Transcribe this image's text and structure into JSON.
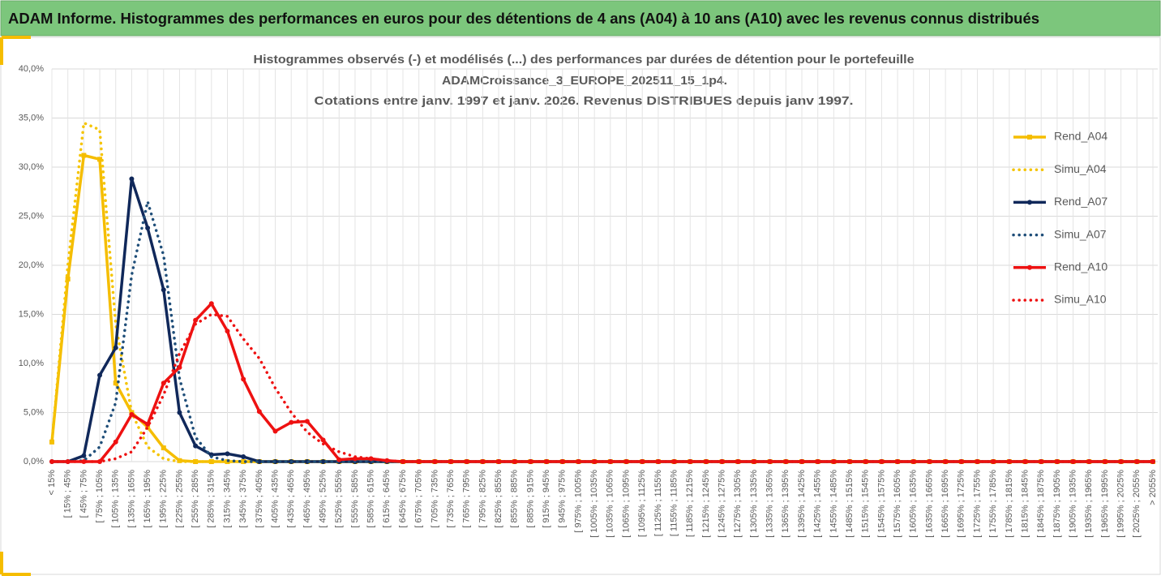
{
  "header": {
    "title": "ADAM Informe. Histogrammes des performances en euros pour des détentions de 4 ans (A04) à 10 ans (A10) avec les revenus connus distribués"
  },
  "chart_data": {
    "type": "line",
    "title_lines": [
      "Histogrammes observés (-) et modélisés (...) des performances par durées de détention pour le portefeuille",
      "ADAMCroissance_3_EUROPE_202511_15_1p4.",
      "Cotations entre janv. 1997 et janv. 2026. Revenus DISTRIBUES depuis janv 1997."
    ],
    "categories": [
      "< 15%",
      "[ 15% ; 45%",
      "[ 45% ; 75%",
      "[ 75% ; 105%",
      "[ 105% ; 135%",
      "[ 135% ; 165%",
      "[ 165% ; 195%",
      "[ 195% ; 225%",
      "[ 225% ; 255%",
      "[ 255% ; 285%",
      "[ 285% ; 315%",
      "[ 315% ; 345%",
      "[ 345% ; 375%",
      "[ 375% ; 405%",
      "[ 405% ; 435%",
      "[ 435% ; 465%",
      "[ 465% ; 495%",
      "[ 495% ; 525%",
      "[ 525% ; 555%",
      "[ 555% ; 585%",
      "[ 585% ; 615%",
      "[ 615% ; 645%",
      "[ 645% ; 675%",
      "[ 675% ; 705%",
      "[ 705% ; 735%",
      "[ 735% ; 765%",
      "[ 765% ; 795%",
      "[ 795% ; 825%",
      "[ 825% ; 855%",
      "[ 855% ; 885%",
      "[ 885% ; 915%",
      "[ 915% ; 945%",
      "[ 945% ; 975%",
      "[ 975% ; 1005%",
      "[ 1005% ; 1035%",
      "[ 1035% ; 1065%",
      "[ 1065% ; 1095%",
      "[ 1095% ; 1125%",
      "[ 1125% ; 1155%",
      "[ 1155% ; 1185%",
      "[ 1185% ; 1215%",
      "[ 1215% ; 1245%",
      "[ 1245% ; 1275%",
      "[ 1275% ; 1305%",
      "[ 1305% ; 1335%",
      "[ 1335% ; 1365%",
      "[ 1365% ; 1395%",
      "[ 1395% ; 1425%",
      "[ 1425% ; 1455%",
      "[ 1455% ; 1485%",
      "[ 1485% ; 1515%",
      "[ 1515% ; 1545%",
      "[ 1545% ; 1575%",
      "[ 1575% ; 1605%",
      "[ 1605% ; 1635%",
      "[ 1635% ; 1665%",
      "[ 1665% ; 1695%",
      "[ 1695% ; 1725%",
      "[ 1725% ; 1755%",
      "[ 1755% ; 1785%",
      "[ 1785% ; 1815%",
      "[ 1815% ; 1845%",
      "[ 1845% ; 1875%",
      "[ 1875% ; 1905%",
      "[ 1905% ; 1935%",
      "[ 1935% ; 1965%",
      "[ 1965% ; 1995%",
      "[ 1995% ; 2025%",
      "[ 2025% ; 2055%",
      "> 2055%"
    ],
    "series": [
      {
        "name": "Rend_A04",
        "color": "#f5bd00",
        "line_style": "solid",
        "marker": "square",
        "values": [
          2.0,
          18.6,
          31.2,
          30.8,
          8.0,
          5.0,
          3.5,
          1.4,
          0.1,
          0,
          0,
          0,
          0,
          0,
          0,
          0,
          0,
          0,
          0,
          0,
          0,
          0,
          0,
          0,
          0,
          0,
          0,
          0,
          0,
          0,
          0,
          0,
          0,
          0,
          0,
          0,
          0,
          0,
          0,
          0,
          0,
          0,
          0,
          0,
          0,
          0,
          0,
          0,
          0,
          0,
          0,
          0,
          0,
          0,
          0,
          0,
          0,
          0,
          0,
          0,
          0,
          0,
          0,
          0,
          0,
          0,
          0,
          0,
          0,
          0
        ]
      },
      {
        "name": "Simu_A04",
        "color": "#f5c400",
        "line_style": "dotted",
        "marker": "none",
        "values": [
          2.0,
          20.0,
          34.5,
          33.8,
          14.0,
          5.0,
          1.5,
          0.3,
          0,
          0,
          0,
          0,
          0,
          0,
          0,
          0,
          0,
          0,
          0,
          0,
          0,
          0,
          0,
          0,
          0,
          0,
          0,
          0,
          0,
          0,
          0,
          0,
          0,
          0,
          0,
          0,
          0,
          0,
          0,
          0,
          0,
          0,
          0,
          0,
          0,
          0,
          0,
          0,
          0,
          0,
          0,
          0,
          0,
          0,
          0,
          0,
          0,
          0,
          0,
          0,
          0,
          0,
          0,
          0,
          0,
          0,
          0,
          0,
          0,
          0
        ]
      },
      {
        "name": "Rend_A07",
        "color": "#10285a",
        "line_style": "solid",
        "marker": "circle",
        "values": [
          0,
          0,
          0.6,
          8.8,
          11.6,
          28.8,
          23.8,
          17.5,
          5.0,
          1.6,
          0.7,
          0.8,
          0.5,
          0,
          0,
          0,
          0,
          0,
          0,
          0,
          0,
          0,
          0,
          0,
          0,
          0,
          0,
          0,
          0,
          0,
          0,
          0,
          0,
          0,
          0,
          0,
          0,
          0,
          0,
          0,
          0,
          0,
          0,
          0,
          0,
          0,
          0,
          0,
          0,
          0,
          0,
          0,
          0,
          0,
          0,
          0,
          0,
          0,
          0,
          0,
          0,
          0,
          0,
          0,
          0,
          0,
          0,
          0,
          0,
          0
        ]
      },
      {
        "name": "Simu_A07",
        "color": "#1f4e79",
        "line_style": "dotted",
        "marker": "none",
        "values": [
          0,
          0,
          0.1,
          1.5,
          6.0,
          19.0,
          26.5,
          21.0,
          8.5,
          2.5,
          0.5,
          0.1,
          0,
          0,
          0,
          0,
          0,
          0,
          0,
          0,
          0,
          0,
          0,
          0,
          0,
          0,
          0,
          0,
          0,
          0,
          0,
          0,
          0,
          0,
          0,
          0,
          0,
          0,
          0,
          0,
          0,
          0,
          0,
          0,
          0,
          0,
          0,
          0,
          0,
          0,
          0,
          0,
          0,
          0,
          0,
          0,
          0,
          0,
          0,
          0,
          0,
          0,
          0,
          0,
          0,
          0,
          0,
          0,
          0,
          0
        ]
      },
      {
        "name": "Rend_A10",
        "color": "#ee1111",
        "line_style": "solid",
        "marker": "circle",
        "values": [
          0,
          0,
          0,
          0,
          2.0,
          4.8,
          3.8,
          8.0,
          9.6,
          14.4,
          16.1,
          13.3,
          8.4,
          5.1,
          3.1,
          4.0,
          4.1,
          2.2,
          0.2,
          0.3,
          0.3,
          0.1,
          0,
          0,
          0,
          0,
          0,
          0,
          0,
          0,
          0,
          0,
          0,
          0,
          0,
          0,
          0,
          0,
          0,
          0,
          0,
          0,
          0,
          0,
          0,
          0,
          0,
          0,
          0,
          0,
          0,
          0,
          0,
          0,
          0,
          0,
          0,
          0,
          0,
          0,
          0,
          0,
          0,
          0,
          0,
          0,
          0,
          0,
          0,
          0
        ]
      },
      {
        "name": "Simu_A10",
        "color": "#ee1111",
        "line_style": "dotted",
        "marker": "none",
        "values": [
          0,
          0,
          0,
          0,
          0.3,
          1.0,
          3.5,
          6.8,
          11.0,
          14.0,
          15.0,
          14.8,
          12.5,
          10.5,
          7.5,
          5.0,
          3.0,
          1.8,
          1.0,
          0.5,
          0.3,
          0.1,
          0,
          0,
          0,
          0,
          0,
          0,
          0,
          0,
          0,
          0,
          0,
          0,
          0,
          0,
          0,
          0,
          0,
          0,
          0,
          0,
          0,
          0,
          0,
          0,
          0,
          0,
          0,
          0,
          0,
          0,
          0,
          0,
          0,
          0,
          0,
          0,
          0,
          0,
          0,
          0,
          0,
          0,
          0,
          0,
          0,
          0,
          0,
          0
        ]
      }
    ],
    "ylim": [
      0,
      40
    ],
    "yticks": [
      {
        "value": 0,
        "label": "0,0%"
      },
      {
        "value": 5,
        "label": "5,0%"
      },
      {
        "value": 10,
        "label": "10,0%"
      },
      {
        "value": 15,
        "label": "15,0%"
      },
      {
        "value": 20,
        "label": "20,0%"
      },
      {
        "value": 25,
        "label": "25,0%"
      },
      {
        "value": 30,
        "label": "30,0%"
      },
      {
        "value": 35,
        "label": "35,0%"
      },
      {
        "value": 40,
        "label": "40,0%"
      }
    ],
    "grid": true,
    "legend": "right"
  }
}
